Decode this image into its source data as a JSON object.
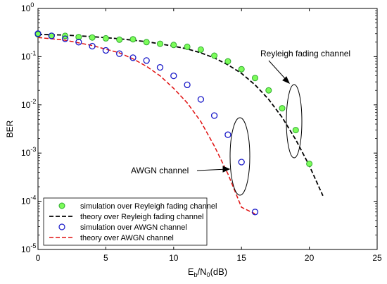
{
  "chart_data": {
    "type": "line",
    "title": "",
    "xlabel_base": "E",
    "xlabel_sub1": "b",
    "xlabel_mid": "/N",
    "xlabel_sub2": "0",
    "xlabel_unit": "(dB)",
    "ylabel": "BER",
    "xlim": [
      0,
      25
    ],
    "ylim": [
      1e-05,
      1
    ],
    "yscale": "log",
    "grid": false,
    "legend_position": "bottom-left",
    "x_ticks": [
      "0",
      "5",
      "10",
      "15",
      "20",
      "25"
    ],
    "y_ticks": [
      {
        "base": "10",
        "exp": "-5"
      },
      {
        "base": "10",
        "exp": "-4"
      },
      {
        "base": "10",
        "exp": "-3"
      },
      {
        "base": "10",
        "exp": "-2"
      },
      {
        "base": "10",
        "exp": "-1"
      },
      {
        "base": "10",
        "exp": "0"
      }
    ],
    "series": [
      {
        "name": "simulation over Reyleigh fading channel",
        "style": "markers",
        "marker_fill": "#7CFC5A",
        "marker_edge": "#2EA82E",
        "x": [
          0,
          1,
          2,
          3,
          4,
          5,
          6,
          7,
          8,
          9,
          10,
          11,
          12,
          13,
          14,
          15,
          16,
          17,
          18,
          19,
          20
        ],
        "y": [
          0.29,
          0.27,
          0.27,
          0.255,
          0.25,
          0.24,
          0.225,
          0.23,
          0.2,
          0.185,
          0.175,
          0.16,
          0.14,
          0.105,
          0.08,
          0.055,
          0.036,
          0.02,
          0.0085,
          0.003,
          0.0006
        ]
      },
      {
        "name": "theory over Reyleigh fading channel",
        "style": "dashed",
        "color": "#000000",
        "x": [
          0,
          2,
          4,
          6,
          8,
          10,
          11,
          12,
          13,
          14,
          15,
          16,
          17,
          18,
          19,
          20,
          21
        ],
        "y": [
          0.29,
          0.28,
          0.26,
          0.235,
          0.205,
          0.165,
          0.145,
          0.12,
          0.094,
          0.068,
          0.045,
          0.026,
          0.013,
          0.0055,
          0.0019,
          0.00055,
          0.00013
        ]
      },
      {
        "name": "simulation over AWGN channel",
        "style": "markers",
        "marker_fill": "none",
        "marker_edge": "#1818C8",
        "x": [
          0,
          1,
          2,
          3,
          4,
          5,
          6,
          7,
          8,
          9,
          10,
          11,
          12,
          13,
          14,
          15,
          16
        ],
        "y": [
          0.3,
          0.27,
          0.235,
          0.2,
          0.165,
          0.135,
          0.115,
          0.095,
          0.083,
          0.06,
          0.04,
          0.026,
          0.013,
          0.006,
          0.0024,
          0.00065,
          6e-05
        ]
      },
      {
        "name": "theory  over AWGN channel",
        "style": "dashed",
        "color": "#E01010",
        "x": [
          0,
          2,
          4,
          6,
          7,
          8,
          9,
          10,
          11,
          12,
          13,
          14,
          15,
          16
        ],
        "y": [
          0.25,
          0.22,
          0.17,
          0.12,
          0.09,
          0.063,
          0.04,
          0.022,
          0.011,
          0.0045,
          0.0014,
          0.00037,
          7.5e-05,
          5.5e-05
        ]
      }
    ],
    "annotations": [
      {
        "text": "Reyleigh fading channel",
        "arrow_to": [
          18.5,
          0.008
        ]
      },
      {
        "text": "AWGN channel",
        "arrow_to": [
          14.8,
          0.0009
        ]
      }
    ]
  }
}
